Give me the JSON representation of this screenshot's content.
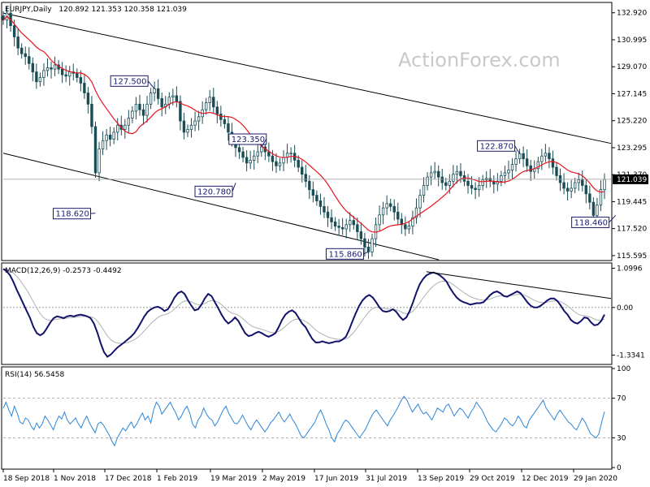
{
  "chart_data": [
    {
      "panel": "price",
      "type": "line",
      "title": "EURJPY,Daily",
      "ohlc": "120.892 121.353 120.358 121.039",
      "watermark": "ActionForex.com",
      "ylim": [
        115.3,
        133.6
      ],
      "y_ticks": [
        "132.920",
        "130.995",
        "129.070",
        "127.145",
        "125.220",
        "123.295",
        "121.370",
        "119.445",
        "117.520",
        "115.595"
      ],
      "y_tick_values": [
        132.92,
        130.995,
        129.07,
        127.145,
        125.22,
        123.295,
        121.37,
        119.445,
        117.52,
        115.595
      ],
      "last_price_label": "121.039",
      "last_price": 121.039,
      "x_ticks": [
        "18 Sep 2018",
        "1 Nov 2018",
        "17 Dec 2018",
        "1 Feb 2019",
        "19 Mar 2019",
        "2 May 2019",
        "17 Jun 2019",
        "31 Jul 2019",
        "13 Sep 2019",
        "29 Oct 2019",
        "12 Dec 2019",
        "29 Jan 2020"
      ],
      "close": [
        132.4,
        132.9,
        132.0,
        131.2,
        130.4,
        130.0,
        129.8,
        129.3,
        128.7,
        128.0,
        128.3,
        128.8,
        129.0,
        128.9,
        129.2,
        128.9,
        128.5,
        128.4,
        128.7,
        128.6,
        128.3,
        127.9,
        127.2,
        126.4,
        124.8,
        121.5,
        123.2,
        123.8,
        124.2,
        123.9,
        124.4,
        124.9,
        124.6,
        124.9,
        125.4,
        125.9,
        126.4,
        126.0,
        125.6,
        126.4,
        127.2,
        127.5,
        126.8,
        126.2,
        126.4,
        126.9,
        127.0,
        126.6,
        125.2,
        124.4,
        124.6,
        124.9,
        125.2,
        125.5,
        126.0,
        126.5,
        126.9,
        126.2,
        125.7,
        125.3,
        125.0,
        124.4,
        123.8,
        123.3,
        123.0,
        122.6,
        122.2,
        122.4,
        122.7,
        123.0,
        123.35,
        123.0,
        122.7,
        122.3,
        122.0,
        122.2,
        122.6,
        122.9,
        122.9,
        122.4,
        121.9,
        121.4,
        120.9,
        120.3,
        119.9,
        119.5,
        119.1,
        118.7,
        118.3,
        118.0,
        117.7,
        117.6,
        117.5,
        117.8,
        118.1,
        117.8,
        117.3,
        116.8,
        116.2,
        115.86,
        116.8,
        117.8,
        118.5,
        119.0,
        119.3,
        119.1,
        118.7,
        118.2,
        117.8,
        117.5,
        117.7,
        118.3,
        119.0,
        119.9,
        120.6,
        121.2,
        121.5,
        121.6,
        121.2,
        120.8,
        120.6,
        120.9,
        121.4,
        121.6,
        121.3,
        120.9,
        120.6,
        120.4,
        120.3,
        120.6,
        121.0,
        121.1,
        120.9,
        120.7,
        120.9,
        121.3,
        121.5,
        121.7,
        122.1,
        122.5,
        122.87,
        122.5,
        122.0,
        121.6,
        121.8,
        122.3,
        122.7,
        122.9,
        122.5,
        121.9,
        121.3,
        120.8,
        120.4,
        120.2,
        120.4,
        120.8,
        121.0,
        120.6,
        120.0,
        119.4,
        118.46,
        119.2,
        120.3,
        121.039
      ],
      "sma_color": "#e8141e",
      "candle_color": "#1a4d55"
    },
    {
      "panel": "macd",
      "type": "line",
      "title": "MACD(12,26,9) -0.2573 -0.4492",
      "ylim": [
        -1.55,
        1.2
      ],
      "y_ticks": [
        "1.0996",
        "0.00",
        "-1.3341"
      ],
      "y_tick_values": [
        1.0996,
        0.0,
        -1.3341
      ],
      "zero_label": "0.00",
      "macd": [
        1.08,
        1.02,
        0.9,
        0.72,
        0.5,
        0.3,
        0.1,
        -0.1,
        -0.3,
        -0.55,
        -0.72,
        -0.78,
        -0.72,
        -0.58,
        -0.42,
        -0.3,
        -0.25,
        -0.27,
        -0.3,
        -0.25,
        -0.23,
        -0.25,
        -0.22,
        -0.2,
        -0.22,
        -0.25,
        -0.3,
        -0.45,
        -0.7,
        -1.0,
        -1.25,
        -1.38,
        -1.32,
        -1.22,
        -1.12,
        -1.05,
        -0.98,
        -0.9,
        -0.82,
        -0.72,
        -0.58,
        -0.42,
        -0.25,
        -0.12,
        -0.05,
        0.0,
        0.02,
        -0.02,
        -0.1,
        -0.05,
        0.1,
        0.28,
        0.4,
        0.45,
        0.38,
        0.2,
        0.05,
        -0.08,
        -0.05,
        0.08,
        0.25,
        0.38,
        0.32,
        0.15,
        -0.02,
        -0.2,
        -0.35,
        -0.45,
        -0.38,
        -0.28,
        -0.38,
        -0.55,
        -0.72,
        -0.8,
        -0.78,
        -0.72,
        -0.68,
        -0.72,
        -0.78,
        -0.82,
        -0.78,
        -0.72,
        -0.55,
        -0.35,
        -0.2,
        -0.12,
        -0.08,
        -0.15,
        -0.3,
        -0.45,
        -0.55,
        -0.72,
        -0.88,
        -0.98,
        -0.98,
        -0.95,
        -0.98,
        -1.0,
        -0.98,
        -0.95,
        -0.95,
        -0.9,
        -0.82,
        -0.62,
        -0.38,
        -0.15,
        0.05,
        0.2,
        0.3,
        0.35,
        0.28,
        0.15,
        0.0,
        -0.1,
        -0.12,
        -0.1,
        -0.05,
        -0.12,
        -0.25,
        -0.35,
        -0.28,
        -0.1,
        0.15,
        0.42,
        0.65,
        0.8,
        0.9,
        0.95,
        0.98,
        0.95,
        0.9,
        0.82,
        0.72,
        0.55,
        0.4,
        0.28,
        0.2,
        0.15,
        0.12,
        0.08,
        0.1,
        0.12,
        0.12,
        0.15,
        0.25,
        0.35,
        0.42,
        0.45,
        0.4,
        0.32,
        0.3,
        0.35,
        0.4,
        0.45,
        0.4,
        0.28,
        0.15,
        0.05,
        0.0,
        0.0,
        0.05,
        0.12,
        0.2,
        0.25,
        0.25,
        0.18,
        0.05,
        -0.1,
        -0.2,
        -0.35,
        -0.42,
        -0.45,
        -0.38,
        -0.28,
        -0.3,
        -0.42,
        -0.5,
        -0.48,
        -0.38,
        -0.2
      ],
      "signal_color": "#b0b0b0",
      "macd_color": "#12126b"
    },
    {
      "panel": "rsi",
      "type": "line",
      "title": "RSI(14) 56.5458",
      "ylim": [
        0,
        100
      ],
      "y_ticks": [
        "100",
        "70",
        "30",
        "0"
      ],
      "y_tick_values": [
        100,
        70,
        30,
        0
      ],
      "rsi": [
        60,
        66,
        58,
        52,
        62,
        55,
        46,
        44,
        50,
        48,
        42,
        38,
        45,
        40,
        44,
        52,
        48,
        43,
        38,
        46,
        52,
        49,
        56,
        48,
        44,
        47,
        50,
        44,
        40,
        47,
        52,
        45,
        40,
        35,
        44,
        46,
        43,
        38,
        33,
        27,
        22,
        30,
        35,
        40,
        37,
        42,
        46,
        40,
        44,
        50,
        55,
        48,
        52,
        45,
        58,
        66,
        62,
        54,
        58,
        62,
        66,
        60,
        55,
        48,
        52,
        58,
        62,
        55,
        44,
        40,
        48,
        52,
        60,
        54,
        50,
        48,
        42,
        46,
        52,
        58,
        62,
        55,
        50,
        45,
        44,
        48,
        53,
        47,
        42,
        38,
        44,
        48,
        44,
        40,
        36,
        40,
        45,
        48,
        52,
        56,
        50,
        46,
        50,
        54,
        48,
        44,
        38,
        32,
        30,
        34,
        38,
        42,
        46,
        53,
        58,
        52,
        44,
        38,
        30,
        26,
        34,
        38,
        44,
        48,
        46,
        42,
        38,
        34,
        30,
        34,
        38,
        44,
        50,
        55,
        58,
        54,
        50,
        46,
        42,
        48,
        52,
        57,
        62,
        68,
        72,
        68,
        62,
        56,
        60,
        64,
        58,
        54,
        56,
        52,
        48,
        54,
        60,
        58,
        56,
        62,
        64,
        58,
        52,
        56,
        60,
        58,
        54,
        50,
        56,
        60,
        66,
        62,
        58,
        52,
        46,
        42,
        38,
        36,
        40,
        44,
        50,
        48,
        44,
        42,
        46,
        52,
        48,
        42,
        40,
        48,
        52,
        56,
        60,
        64,
        68,
        60,
        56,
        52,
        48,
        54,
        58,
        54,
        50,
        46,
        44,
        40,
        38,
        44,
        50,
        46,
        40,
        34,
        32,
        30,
        34,
        46,
        56.5
      ],
      "dashed_levels": [
        70,
        30
      ],
      "rsi_color": "#2d86d8"
    }
  ],
  "annotations": [
    {
      "label": "127.500",
      "price": 127.5,
      "bar": 41,
      "side": "left"
    },
    {
      "label": "118.620",
      "price": 118.62,
      "bar": 25,
      "side": "left"
    },
    {
      "label": "123.350",
      "price": 123.35,
      "bar": 70,
      "side": "left"
    },
    {
      "label": "120.780",
      "price": 120.78,
      "bar": 63,
      "side": "left"
    },
    {
      "label": "115.860",
      "price": 115.86,
      "bar": 99,
      "side": "left"
    },
    {
      "label": "122.870",
      "price": 122.87,
      "bar": 140,
      "side": "left"
    },
    {
      "label": "118.460",
      "price": 118.46,
      "bar": 166,
      "side": "left"
    }
  ]
}
